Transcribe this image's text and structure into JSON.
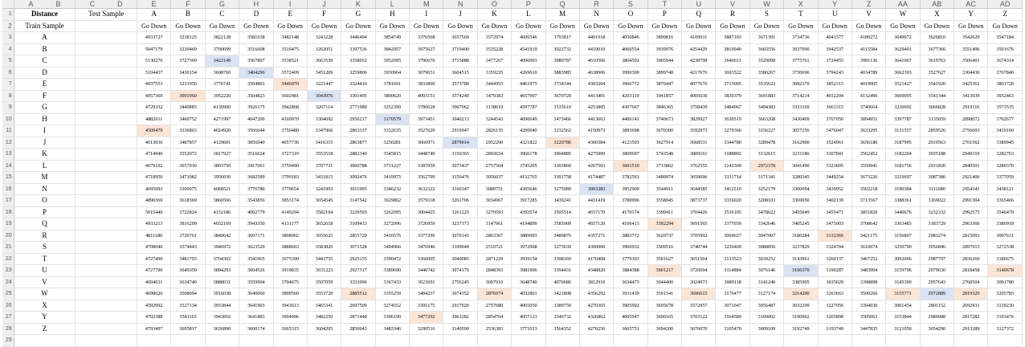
{
  "sheet": {
    "column_letters": [
      "A",
      "B",
      "C",
      "D",
      "E",
      "F",
      "G",
      "H",
      "I",
      "J",
      "K",
      "L",
      "M",
      "N",
      "O",
      "P",
      "Q",
      "R",
      "S",
      "T",
      "U",
      "V",
      "W",
      "X",
      "Y",
      "Z",
      "AA",
      "AB",
      "AC",
      "AD"
    ],
    "header_row1": {
      "distance": "Distance",
      "test_sample": "Test Sample",
      "letters": [
        "A",
        "B",
        "C",
        "D",
        "E",
        "F",
        "G",
        "H",
        "I",
        "J",
        "K",
        "L",
        "M",
        "N",
        "O",
        "P",
        "Q",
        "R",
        "S",
        "T",
        "U",
        "V",
        "W",
        "X",
        "Y",
        "Z"
      ]
    },
    "header_row2": {
      "train_sample": "Train Sample",
      "go_down": "Go Down"
    },
    "highlight_colors": {
      "blue": "#dae3f3",
      "orange": "#fbe5d6"
    },
    "rows": [
      {
        "label": "A",
        "values": [
          "4933727",
          "3238125",
          "3822128",
          "3581638",
          "3482148",
          "3243228",
          "3446494",
          "3854749",
          "3376568",
          "3657560",
          "3572974",
          "4606546",
          "3793817",
          "4401918",
          "4050846",
          "3899816",
          "4109011",
          "3887103",
          "3671391",
          "3734736",
          "4041577",
          "4189272",
          "3649072",
          "3626810",
          "3542629",
          "3547184"
        ]
      },
      {
        "label": "B",
        "values": [
          "5047179",
          "3239469",
          "3700699",
          "3516608",
          "3510475",
          "3262051",
          "3397536",
          "3842957",
          "3975627",
          "3719400",
          "3535228",
          "4541919",
          "3022732",
          "4419010",
          "4060554",
          "3939976",
          "4254429",
          "3810940",
          "3665556",
          "3937090",
          "3942537",
          "4115584",
          "3629401",
          "3677366",
          "3551496",
          "3501676"
        ]
      },
      {
        "label": "C",
        "values": [
          "5130276",
          "3727369",
          "3422149",
          "3567807",
          "3538521",
          "3663539",
          "3358052",
          "3952095",
          "3796670",
          "3715888",
          "3477267",
          "4096903",
          "3980787",
          "4610506",
          "3804592",
          "3905944",
          "4238708",
          "3646611",
          "3520098",
          "3775761",
          "3724455",
          "3991136",
          "3641067",
          "3619763",
          "3506401",
          "3674314"
        ]
      },
      {
        "label": "D",
        "values": [
          "5104437",
          "3430154",
          "3698760",
          "3404296",
          "3572409",
          "3451209",
          "3259806",
          "3930964",
          "3079651",
          "3604515",
          "3359235",
          "4269610",
          "3883985",
          "4638906",
          "3990300",
          "3899748",
          "4217676",
          "3693522",
          "3580267",
          "3730696",
          "3794243",
          "4034789",
          "3662393",
          "3527627",
          "3304430",
          "3767840"
        ]
      },
      {
        "label": "E",
        "values": [
          "4937553",
          "3231950",
          "3776741",
          "3504803",
          "3446970",
          "3221447",
          "3324410",
          "3781661",
          "3833800",
          "3573780",
          "3444953",
          "4461975",
          "3734144",
          "4303204",
          "3966772",
          "3876447",
          "4077676",
          "3713005",
          "3535622",
          "3682370",
          "3852315",
          "4019905",
          "3521427",
          "3541920",
          "3425361",
          "3801720"
        ]
      },
      {
        "label": "F",
        "values": [
          "4957369",
          "3091960",
          "3952226",
          "3504823",
          "3602981",
          "3043976",
          "3301495",
          "3800620",
          "4003151",
          "3574249",
          "3479383",
          "4657997",
          "3670720",
          "4413401",
          "4203119",
          "3941857",
          "4005030",
          "3830379",
          "3691883",
          "3714214",
          "4012204",
          "4132496",
          "3600095",
          "3541344",
          "3413939",
          "3932463"
        ]
      },
      {
        "label": "G",
        "values": [
          "4729332",
          "3440883",
          "4130900",
          "3926175",
          "3942868",
          "3267114",
          "2771989",
          "3252399",
          "3780628",
          "3067062",
          "3138619",
          "4597787",
          "3535610",
          "4253805",
          "4307667",
          "3846365",
          "3758439",
          "3484967",
          "3494383",
          "3333169",
          "3663315",
          "3740664",
          "3230692",
          "3066828",
          "2919116",
          "3573535"
        ]
      },
      {
        "label": "H",
        "values": [
          "4882011",
          "3460752",
          "4271997",
          "4047200",
          "4169970",
          "3304692",
          "2956217",
          "3170579",
          "3973451",
          "3040213",
          "3244543",
          "4690649",
          "3473466",
          "4413663",
          "4400141",
          "3740673",
          "3829927",
          "3630519",
          "3663268",
          "3430469",
          "3707050",
          "3894951",
          "3397787",
          "3135059",
          "2898072",
          "3702677"
        ]
      },
      {
        "label": "I",
        "values": [
          "4509479",
          "3336863",
          "4024920",
          "3566644",
          "3750480",
          "3347966",
          "2863337",
          "3332635",
          "3527629",
          "2919947",
          "2826135",
          "4200040",
          "3232562",
          "4150973",
          "3893698",
          "3670300",
          "3592973",
          "3279366",
          "3156227",
          "3057256",
          "3476047",
          "3633295",
          "3131557",
          "2859526",
          "2756603",
          "3419160"
        ]
      },
      {
        "label": "J",
        "values": [
          "4613036",
          "3487857",
          "4129601",
          "3856940",
          "4057736",
          "3416315",
          "2863877",
          "3250281",
          "3666971",
          "2879014",
          "2952290",
          "4321822",
          "3220786",
          "4306584",
          "4123593",
          "3627914",
          "3668531",
          "3344780",
          "3289478",
          "3162900",
          "3524961",
          "3656186",
          "3187995",
          "2919563",
          "2701562",
          "3389945"
        ]
      },
      {
        "label": "K",
        "values": [
          "4714946",
          "3552072",
          "3817927",
          "3516624",
          "3727319",
          "3553518",
          "2882340",
          "3545815",
          "3448749",
          "3150365",
          "2893634",
          "3966178",
          "3904885",
          "4275909",
          "3809697",
          "3743548",
          "3809161",
          "3188802",
          "3132615",
          "3231186",
          "3307841",
          "3562452",
          "3182204",
          "3035188",
          "2949310",
          "3282763"
        ]
      },
      {
        "label": "L",
        "values": [
          "4679102",
          "3657010",
          "3893750",
          "3417061",
          "3759490",
          "3707731",
          "3060788",
          "3731227",
          "3387059",
          "3073437",
          "2757564",
          "3745205",
          "3303860",
          "4267503",
          "3601510",
          "3713862",
          "3762555",
          "3142309",
          "2972378",
          "3041490",
          "3323695",
          "3559941",
          "3181756",
          "2931820",
          "2840501",
          "3280370"
        ]
      },
      {
        "label": "M",
        "values": [
          "4718950",
          "3471082",
          "3956036",
          "3682589",
          "3799183",
          "3431815",
          "3092476",
          "3419975",
          "3562709",
          "3156476",
          "3056037",
          "4132765",
          "3391758",
          "4174487",
          "3782563",
          "3480974",
          "3659696",
          "3331714",
          "3171341",
          "3280345",
          "3449254",
          "3673226",
          "3219697",
          "3087386",
          "2921406",
          "3377059"
        ]
      },
      {
        "label": "N",
        "values": [
          "4695093",
          "3300075",
          "4068521",
          "3776780",
          "3770654",
          "3241903",
          "3011905",
          "3346232",
          "3632322",
          "3160347",
          "3089751",
          "4305646",
          "3275089",
          "3993383",
          "3952909",
          "3544911",
          "3644585",
          "3412510",
          "3252179",
          "3300094",
          "3439952",
          "3502218",
          "3190384",
          "3111080",
          "2954341",
          "3438121"
        ]
      },
      {
        "label": "O",
        "values": [
          "4890369",
          "3618369",
          "3860566",
          "3543856",
          "3853174",
          "3654545",
          "3147542",
          "3629862",
          "3579118",
          "3261706",
          "3034967",
          "3917285",
          "3430241",
          "4431419",
          "3780996",
          "3558045",
          "3873737",
          "3336020",
          "3208103",
          "3369950",
          "3402139",
          "3713567",
          "3388361",
          "3169022",
          "2991304",
          "3365466"
        ]
      },
      {
        "label": "P",
        "values": [
          "5015440",
          "3722824",
          "4152186",
          "4002779",
          "4149294",
          "3582104",
          "3229593",
          "3262095",
          "3004425",
          "3261225",
          "3270593",
          "4393574",
          "3505514",
          "4657170",
          "4170174",
          "3399411",
          "3704426",
          "3536105",
          "3478622",
          "3455049",
          "3455471",
          "3851820",
          "3440676",
          "3232332",
          "2992575",
          "3546470"
        ]
      },
      {
        "label": "Q",
        "values": [
          "4933213",
          "3816209",
          "4032169",
          "3943350",
          "4131177",
          "3652618",
          "3109433",
          "3272096",
          "3726959",
          "3237373",
          "3147961",
          "4194899",
          "3585009",
          "4657120",
          "4106413",
          "3392294",
          "3691565",
          "3377030",
          "3342646",
          "3405245",
          "3475003",
          "3708642",
          "3363483",
          "3183729",
          "2963360",
          "3380918"
        ]
      },
      {
        "label": "R",
        "values": [
          "4811180",
          "3720761",
          "3840642",
          "3607171",
          "3898902",
          "3655625",
          "2855729",
          "3410576",
          "3377296",
          "3070143",
          "2863367",
          "3889993",
          "3489876",
          "4357271",
          "3883772",
          "3620737",
          "3705992",
          "3069657",
          "3047007",
          "3180284",
          "3132366",
          "3421175",
          "3156807",
          "2983274",
          "2815093",
          "3097631"
        ]
      },
      {
        "label": "S",
        "values": [
          "4708040",
          "3574443",
          "3946972",
          "3623529",
          "3888663",
          "3583826",
          "3071528",
          "3494966",
          "3476946",
          "3109049",
          "2510721",
          "3972968",
          "3275639",
          "4300000",
          "3960932",
          "3509516",
          "3740744",
          "3236469",
          "3088056",
          "3237829",
          "3324704",
          "3610074",
          "3250790",
          "3056846",
          "2897915",
          "3272538"
        ]
      },
      {
        "label": "T",
        "values": [
          "4727490",
          "3481793",
          "3704302",
          "3541965",
          "3675390",
          "3443755",
          "2925155",
          "3390472",
          "3360005",
          "3040085",
          "2871229",
          "3939154",
          "3398169",
          "4170468",
          "3779303",
          "3591627",
          "3651564",
          "3133523",
          "3039252",
          "3143961",
          "3260137",
          "3467252",
          "3092066",
          "2987797",
          "2836269",
          "3186675"
        ]
      },
      {
        "label": "U",
        "values": [
          "4727790",
          "3649350",
          "3894293",
          "3604526",
          "3919835",
          "3631223",
          "2927317",
          "3389690",
          "3440742",
          "3074170",
          "2848393",
          "3981906",
          "3394431",
          "4348820",
          "3884388",
          "3601217",
          "3726694",
          "3114884",
          "3076146",
          "3196370",
          "3190287",
          "3483904",
          "3159796",
          "2979630",
          "2818458",
          "3140678"
        ]
      },
      {
        "label": "V",
        "values": [
          "4694631",
          "3634749",
          "3888031",
          "3559904",
          "3704675",
          "3507059",
          "3333996",
          "3367433",
          "3023691",
          "2756245",
          "3007910",
          "3648740",
          "4076686",
          "3812910",
          "3634473",
          "3044400",
          "3024973",
          "3089118",
          "3141240",
          "3385905",
          "3035029",
          "3398898",
          "3145300",
          "2957643",
          "2768504",
          "3091780"
        ]
      },
      {
        "label": "W",
        "values": [
          "4698626",
          "3508094",
          "3916038",
          "3640060",
          "3899560",
          "3553729",
          "2885512",
          "3355259",
          "3484237",
          "3074352",
          "2876974",
          "4032801",
          "3421808",
          "4356292",
          "3931439",
          "3591541",
          "3696615",
          "3176477",
          "3127174",
          "3214200",
          "3263663",
          "3500266",
          "3155771",
          "2972889",
          "2819329",
          "3205783"
        ]
      },
      {
        "label": "X",
        "values": [
          "4592992",
          "3527134",
          "3933844",
          "3641903",
          "3943613",
          "3465341",
          "2697509",
          "3274552",
          "3395175",
          "2917020",
          "2757680",
          "4065050",
          "3389750",
          "4270365",
          "3905992",
          "3695678",
          "3572957",
          "3071047",
          "3056487",
          "3032299",
          "3227056",
          "3394030",
          "3001454",
          "2801152",
          "2692931",
          "3139230"
        ]
      },
      {
        "label": "Y",
        "values": [
          "4702388",
          "3541163",
          "3943816",
          "3641883",
          "3904996",
          "3482250",
          "2871448",
          "3396199",
          "3477292",
          "3063282",
          "2854764",
          "4057123",
          "3346732",
          "4326862",
          "4005947",
          "3690165",
          "3703122",
          "3164589",
          "3109002",
          "3190962",
          "3265898",
          "3505063",
          "3153844",
          "2980988",
          "2817282",
          "3193476"
        ]
      },
      {
        "label": "Z",
        "values": [
          "4793497",
          "3695817",
          "3636890",
          "3600174",
          "3665315",
          "3604205",
          "2850043",
          "3483346",
          "3290516",
          "3140590",
          "2536383",
          "3771013",
          "3564352",
          "4270256",
          "3665751",
          "3694200",
          "3676070",
          "3105470",
          "3009109",
          "3192749",
          "3193749",
          "3447835",
          "3121050",
          "3054290",
          "2913289",
          "3127372"
        ]
      }
    ]
  }
}
